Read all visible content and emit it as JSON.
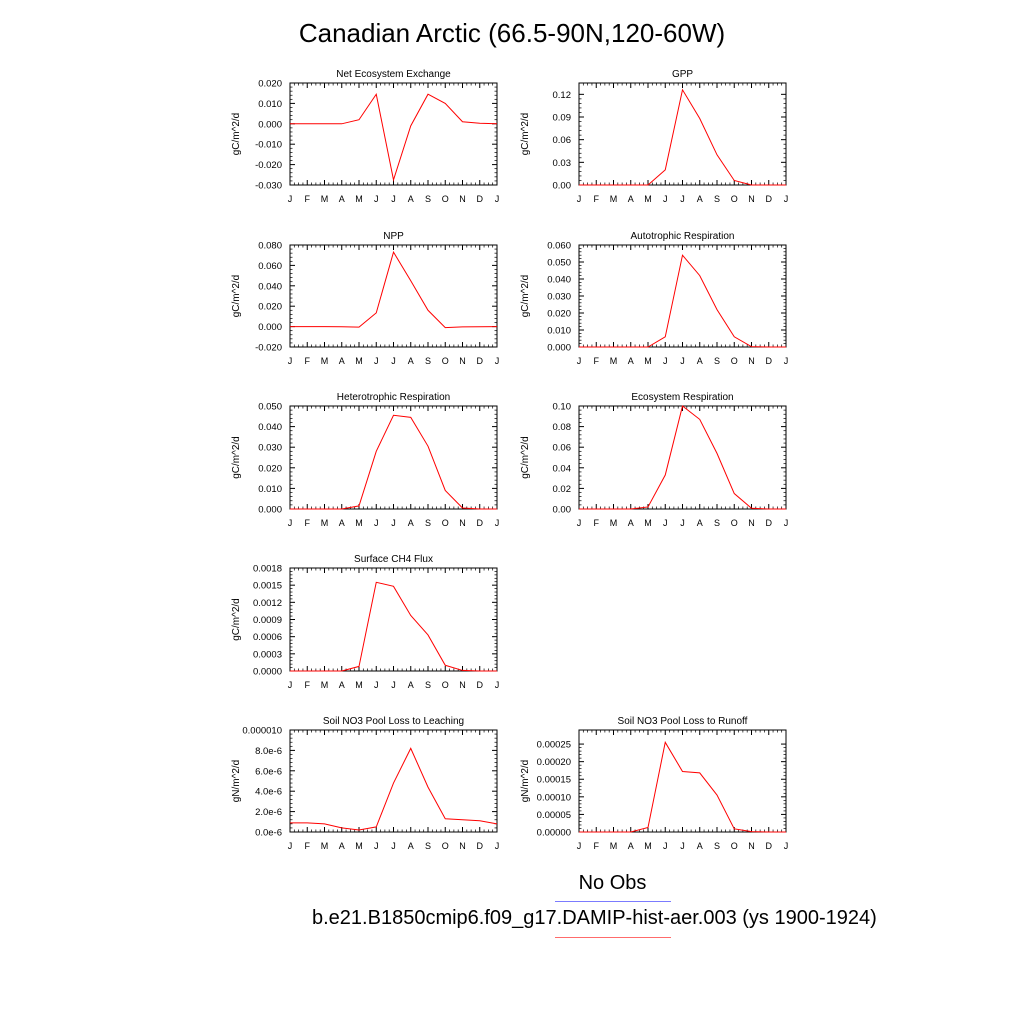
{
  "page": {
    "title": "Canadian Arctic (66.5-90N,120-60W)"
  },
  "legend": {
    "obs_label": "No Obs",
    "model_label": "b.e21.B1850cmip6.f09_g17.DAMIP-hist-aer.003 (ys 1900-1924)",
    "obs_color": "#7b7bff",
    "model_color": "#ff0000"
  },
  "chart_data": [
    {
      "type": "line",
      "title": "Net Ecosystem Exchange",
      "ylabel": "gC/m^2/d",
      "categories": [
        "J",
        "F",
        "M",
        "A",
        "M",
        "J",
        "J",
        "A",
        "S",
        "O",
        "N",
        "D",
        "J"
      ],
      "ylim": [
        -0.03,
        0.02
      ],
      "yticks": [
        -0.03,
        -0.02,
        -0.01,
        0.0,
        0.01,
        0.02
      ],
      "ytick_labels": [
        "-0.030",
        "-0.020",
        "-0.010",
        "0.000",
        "0.010",
        "0.020"
      ],
      "series": [
        {
          "values": [
            0.0,
            0.0,
            0.0,
            0.0,
            0.002,
            0.0145,
            -0.0275,
            -0.001,
            0.0145,
            0.01,
            0.001,
            0.0003,
            0.0
          ]
        }
      ]
    },
    {
      "type": "line",
      "title": "GPP",
      "ylabel": "gC/m^2/d",
      "categories": [
        "J",
        "F",
        "M",
        "A",
        "M",
        "J",
        "J",
        "A",
        "S",
        "O",
        "N",
        "D",
        "J"
      ],
      "ylim": [
        0,
        0.135
      ],
      "yticks": [
        0,
        0.03,
        0.06,
        0.09,
        0.12
      ],
      "ytick_labels": [
        "0.00",
        "0.03",
        "0.06",
        "0.09",
        "0.12"
      ],
      "series": [
        {
          "values": [
            0,
            0,
            0,
            0,
            0,
            0.02,
            0.126,
            0.088,
            0.04,
            0.006,
            0,
            0,
            0
          ]
        }
      ]
    },
    {
      "type": "line",
      "title": "NPP",
      "ylabel": "gC/m^2/d",
      "categories": [
        "J",
        "F",
        "M",
        "A",
        "M",
        "J",
        "J",
        "A",
        "S",
        "O",
        "N",
        "D",
        "J"
      ],
      "ylim": [
        -0.02,
        0.08
      ],
      "yticks": [
        -0.02,
        0.0,
        0.02,
        0.04,
        0.06,
        0.08
      ],
      "ytick_labels": [
        "-0.020",
        "0.000",
        "0.020",
        "0.040",
        "0.060",
        "0.080"
      ],
      "series": [
        {
          "values": [
            0.0,
            0.0,
            0.0,
            -0.0002,
            -0.0005,
            0.0135,
            0.073,
            0.045,
            0.016,
            -0.001,
            -0.0003,
            -0.0002,
            0.0
          ]
        }
      ]
    },
    {
      "type": "line",
      "title": "Autotrophic Respiration",
      "ylabel": "gC/m^2/d",
      "categories": [
        "J",
        "F",
        "M",
        "A",
        "M",
        "J",
        "J",
        "A",
        "S",
        "O",
        "N",
        "D",
        "J"
      ],
      "ylim": [
        0,
        0.06
      ],
      "yticks": [
        0,
        0.01,
        0.02,
        0.03,
        0.04,
        0.05,
        0.06
      ],
      "ytick_labels": [
        "0.000",
        "0.010",
        "0.020",
        "0.030",
        "0.040",
        "0.050",
        "0.060"
      ],
      "series": [
        {
          "values": [
            0,
            0,
            0,
            0,
            0,
            0.006,
            0.054,
            0.042,
            0.022,
            0.006,
            0.0002,
            0,
            0
          ]
        }
      ]
    },
    {
      "type": "line",
      "title": "Heterotrophic Respiration",
      "ylabel": "gC/m^2/d",
      "categories": [
        "J",
        "F",
        "M",
        "A",
        "M",
        "J",
        "J",
        "A",
        "S",
        "O",
        "N",
        "D",
        "J"
      ],
      "ylim": [
        0,
        0.05
      ],
      "yticks": [
        0,
        0.01,
        0.02,
        0.03,
        0.04,
        0.05
      ],
      "ytick_labels": [
        "0.000",
        "0.010",
        "0.020",
        "0.030",
        "0.040",
        "0.050"
      ],
      "series": [
        {
          "values": [
            0,
            0,
            0,
            0,
            0.0015,
            0.028,
            0.0455,
            0.0445,
            0.0305,
            0.009,
            0.0005,
            0,
            0
          ]
        }
      ]
    },
    {
      "type": "line",
      "title": "Ecosystem Respiration",
      "ylabel": "gC/m^2/d",
      "categories": [
        "J",
        "F",
        "M",
        "A",
        "M",
        "J",
        "J",
        "A",
        "S",
        "O",
        "N",
        "D",
        "J"
      ],
      "ylim": [
        0,
        0.1
      ],
      "yticks": [
        0,
        0.02,
        0.04,
        0.06,
        0.08,
        0.1
      ],
      "ytick_labels": [
        "0.00",
        "0.02",
        "0.04",
        "0.06",
        "0.08",
        "0.10"
      ],
      "series": [
        {
          "values": [
            0,
            0,
            0,
            0,
            0.002,
            0.033,
            0.1,
            0.087,
            0.054,
            0.015,
            0.0007,
            0,
            0
          ]
        }
      ]
    },
    {
      "type": "line",
      "title": "Surface CH4 Flux",
      "ylabel": "gC/m^2/d",
      "categories": [
        "J",
        "F",
        "M",
        "A",
        "M",
        "J",
        "J",
        "A",
        "S",
        "O",
        "N",
        "D",
        "J"
      ],
      "ylim": [
        0,
        0.0018
      ],
      "yticks": [
        0,
        0.0003,
        0.0006,
        0.0009,
        0.0012,
        0.0015,
        0.0018
      ],
      "ytick_labels": [
        "0.0000",
        "0.0003",
        "0.0006",
        "0.0009",
        "0.0012",
        "0.0015",
        "0.0018"
      ],
      "series": [
        {
          "values": [
            0,
            0,
            0,
            0,
            8e-05,
            0.00155,
            0.00148,
            0.00097,
            0.00063,
            0.0001,
            1e-05,
            0,
            0
          ]
        }
      ]
    },
    {
      "type": "line",
      "title": "Soil NO3 Pool Loss to Leaching",
      "ylabel": "gN/m^2/d",
      "categories": [
        "J",
        "F",
        "M",
        "A",
        "M",
        "J",
        "J",
        "A",
        "S",
        "O",
        "N",
        "D",
        "J"
      ],
      "ylim": [
        0,
        1e-05
      ],
      "yticks": [
        0,
        2e-06,
        4e-06,
        6e-06,
        8e-06,
        1e-05
      ],
      "ytick_labels": [
        "0.0e-6",
        "2.0e-6",
        "4.0e-6",
        "6.0e-6",
        "8.0e-6",
        "0.000010"
      ],
      "series": [
        {
          "values": [
            9e-07,
            9e-07,
            8e-07,
            4e-07,
            2e-07,
            5e-07,
            4.8e-06,
            8.2e-06,
            4.4e-06,
            1.3e-06,
            1.2e-06,
            1.1e-06,
            8e-07
          ]
        }
      ]
    },
    {
      "type": "line",
      "title": "Soil NO3 Pool Loss to Runoff",
      "ylabel": "gN/m^2/d",
      "categories": [
        "J",
        "F",
        "M",
        "A",
        "M",
        "J",
        "J",
        "A",
        "S",
        "O",
        "N",
        "D",
        "J"
      ],
      "ylim": [
        0,
        0.00029
      ],
      "yticks": [
        0,
        5e-05,
        0.0001,
        0.00015,
        0.0002,
        0.00025
      ],
      "ytick_labels": [
        "0.00000",
        "0.00005",
        "0.00010",
        "0.00015",
        "0.00020",
        "0.00025"
      ],
      "series": [
        {
          "values": [
            0,
            0,
            0,
            0,
            1.3e-05,
            0.000255,
            0.000172,
            0.000168,
            0.000105,
            9e-06,
            1e-06,
            0,
            0
          ]
        }
      ]
    }
  ]
}
